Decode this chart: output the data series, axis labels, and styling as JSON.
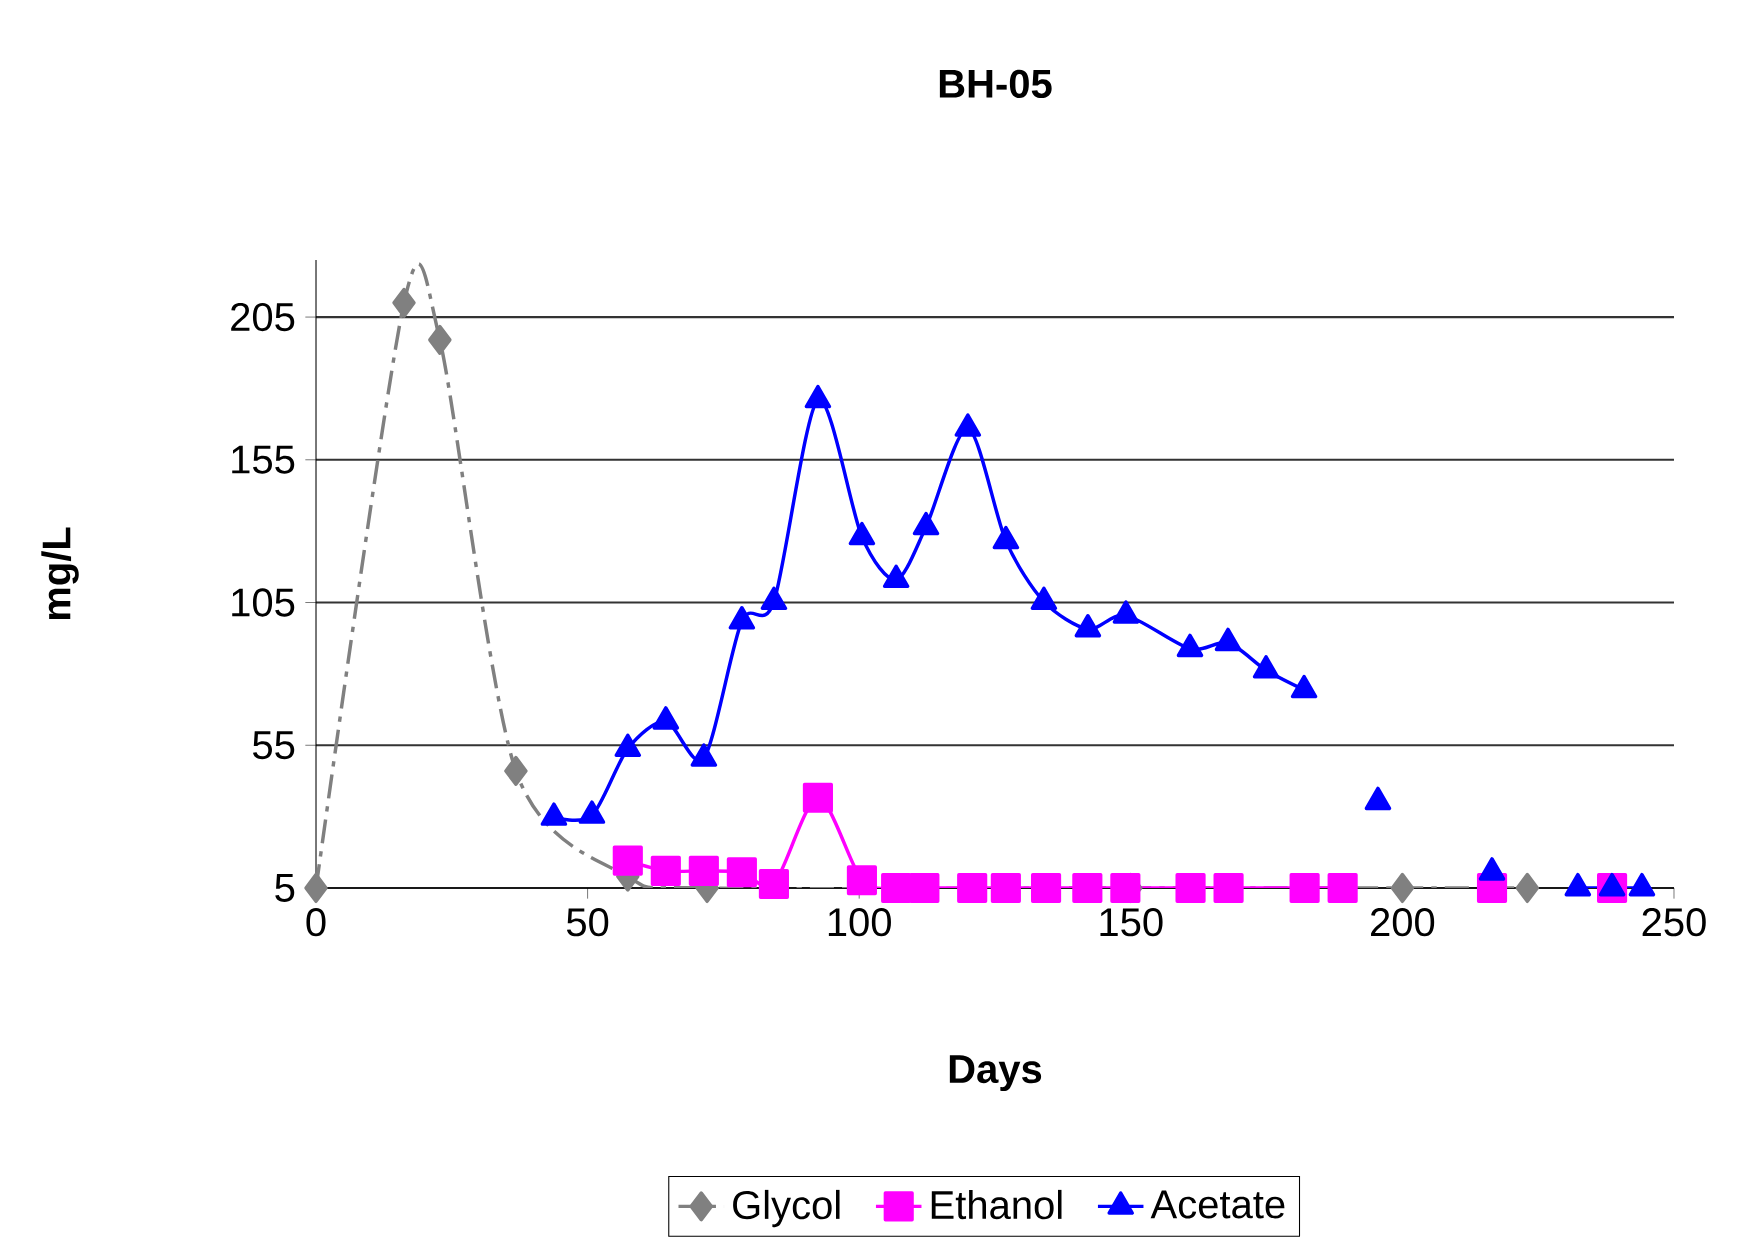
{
  "chart_data": {
    "type": "line",
    "title": "BH-05",
    "xlabel": "Days",
    "ylabel": "mg/L",
    "xlim": [
      0,
      250
    ],
    "ylim": [
      5,
      225
    ],
    "xticks": [
      0,
      50,
      100,
      150,
      200,
      250
    ],
    "yticks": [
      5,
      55,
      105,
      155,
      205
    ],
    "grid": "y",
    "legend": "bottom",
    "series": [
      {
        "name": "Glycol",
        "color": "#808080",
        "marker": "diamond",
        "line_style": "dashed",
        "x": [
          0,
          16.2,
          22.8,
          36.8,
          57.4,
          72,
          150,
          200,
          223
        ],
        "values": [
          5,
          210,
          197,
          46,
          9,
          5,
          5,
          5,
          5
        ]
      },
      {
        "name": "Ethanol",
        "color": "#ff00ff",
        "marker": "square",
        "line_style": "solid",
        "x": [
          57.4,
          64.4,
          71.4,
          78.4,
          84.3,
          92.4,
          100.5,
          106.8,
          112,
          120.8,
          127,
          134.4,
          142,
          149,
          161,
          168,
          182,
          189,
          200,
          216.5,
          228,
          238.6
        ],
        "values": [
          14.6,
          11,
          11,
          10.5,
          6.4,
          36.6,
          7.7,
          5,
          5,
          5,
          5,
          5,
          5,
          5,
          5,
          5,
          5,
          5,
          null,
          5,
          null,
          5
        ]
      },
      {
        "name": "Acetate",
        "color": "#0000ff",
        "marker": "triangle",
        "line_style": "solid",
        "x": [
          43.8,
          50.8,
          57.4,
          64.4,
          71.4,
          78.4,
          84.3,
          92.4,
          100.5,
          106.8,
          112.3,
          120,
          127,
          134,
          142.1,
          149.1,
          160.9,
          167.9,
          174.9,
          181.9,
          188,
          195.5,
          205,
          216.5,
          225,
          232.3,
          238.6,
          244.1
        ],
        "values": [
          29.7,
          30.4,
          53.8,
          63.4,
          50.4,
          98.5,
          105.3,
          176,
          128,
          113,
          131.5,
          166,
          126.6,
          105.3,
          95.7,
          100.5,
          88.8,
          90.9,
          81.3,
          74.4,
          null,
          35.2,
          null,
          10.5,
          null,
          5,
          5,
          5
        ]
      }
    ]
  }
}
